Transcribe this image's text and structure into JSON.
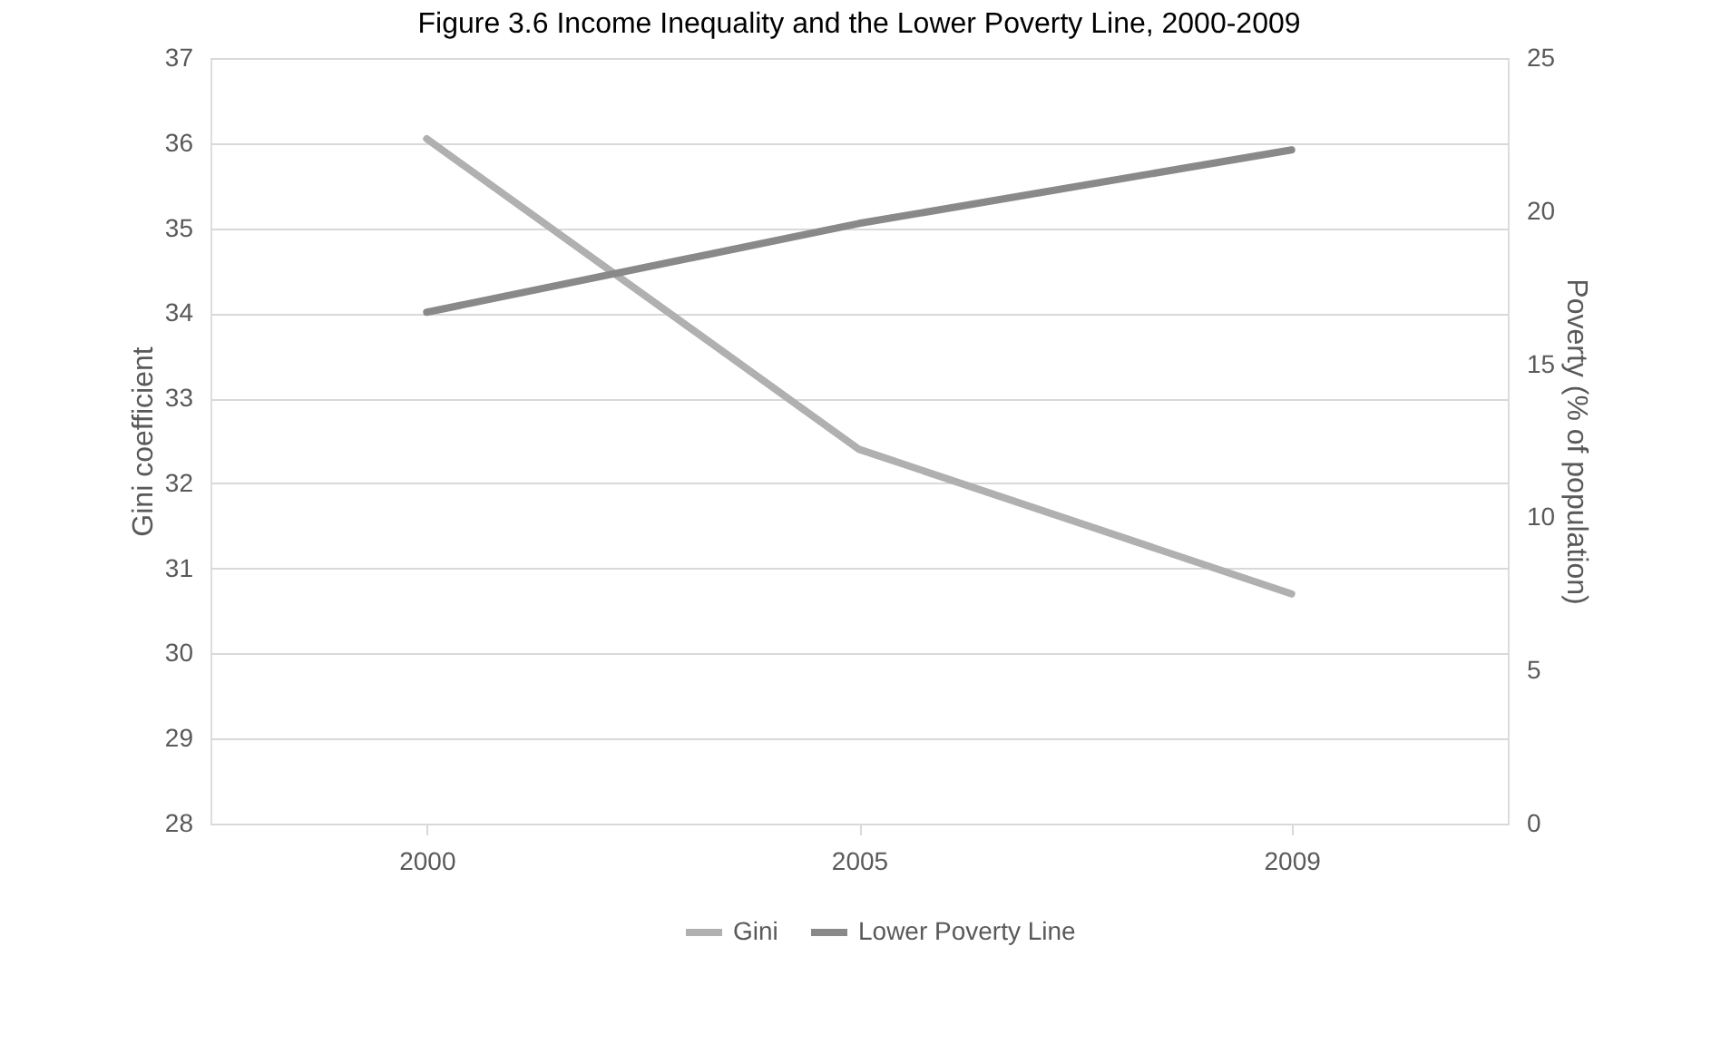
{
  "chart_data": {
    "type": "line",
    "title": "Figure 3.6 Income Inequality and the Lower Poverty Line, 2000-2009",
    "ylabel": "Gini coefficient",
    "y2label": "Poverty (% of population)",
    "categories": [
      "2000",
      "2005",
      "2009"
    ],
    "series": [
      {
        "name": "Gini",
        "color": "#b0b0b0",
        "values": [
          36.05,
          32.4,
          30.7
        ]
      },
      {
        "name": "Lower Poverty Line",
        "color": "#898989",
        "values": [
          16.7,
          19.6,
          22.0
        ],
        "axis": "y2"
      }
    ],
    "ylim": [
      28,
      37
    ],
    "yticks": [
      28,
      29,
      30,
      31,
      32,
      33,
      34,
      35,
      36,
      37
    ],
    "y2lim": [
      0,
      25
    ],
    "y2ticks": [
      0,
      5,
      10,
      15,
      20,
      25
    ],
    "grid": "y",
    "legend": "bottom",
    "marker": "none",
    "line_style": "solid"
  }
}
